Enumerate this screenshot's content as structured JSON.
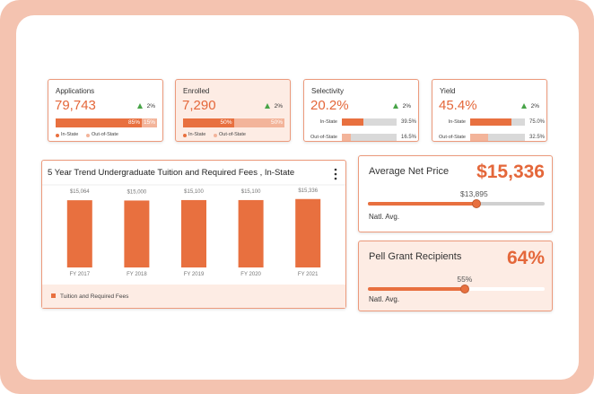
{
  "cards": [
    {
      "title": "Applications",
      "value": "79,743",
      "change": "2%",
      "kind": "stacked",
      "segments": [
        {
          "name": "In-State",
          "value": 85,
          "label": "85%",
          "color": "#e8703f"
        },
        {
          "name": "Out-of-State",
          "value": 15,
          "label": "15%",
          "color": "#f3b49a"
        }
      ]
    },
    {
      "title": "Enrolled",
      "value": "7,290",
      "change": "2%",
      "kind": "stacked",
      "segments": [
        {
          "name": "In-State",
          "value": 50,
          "label": "50%",
          "color": "#e8703f"
        },
        {
          "name": "Out-of-State",
          "value": 50,
          "label": "50%",
          "color": "#f3b49a"
        }
      ]
    },
    {
      "title": "Selectivity",
      "value": "20.2%",
      "change": "2%",
      "kind": "rows",
      "segments": [
        {
          "name": "In-State",
          "value": 39.5,
          "label": "39.5%",
          "color": "#e8703f"
        },
        {
          "name": "Out-of-State",
          "value": 16.5,
          "label": "16.5%",
          "color": "#f3b49a"
        }
      ]
    },
    {
      "title": "Yield",
      "value": "45.4%",
      "change": "2%",
      "kind": "rows",
      "segments": [
        {
          "name": "In-State",
          "value": 75.0,
          "label": "75.0%",
          "color": "#e8703f"
        },
        {
          "name": "Out-of-State",
          "value": 32.5,
          "label": "32.5%",
          "color": "#f3b49a"
        }
      ]
    }
  ],
  "chart_data": {
    "type": "bar",
    "title": "5 Year Trend Undergraduate Tuition and Required Fees , In-State",
    "categories": [
      "FY 2017",
      "FY 2018",
      "FY 2019",
      "FY 2020",
      "FY 2021"
    ],
    "series": [
      {
        "name": "Tuition and Required Fees",
        "color": "#e8703f",
        "values": [
          15064,
          15000,
          15100,
          15100,
          15336
        ],
        "value_labels": [
          "$15,064",
          "$15,000",
          "$15,100",
          "$15,100",
          "$15,336"
        ]
      }
    ],
    "ylim": [
      0,
      17500
    ]
  },
  "net_price": {
    "title": "Average Net Price",
    "value": "$15,336",
    "benchmark": "$13,895",
    "benchmark_label": "Natl. Avg."
  },
  "pell": {
    "title": "Pell Grant Recipients",
    "value": "64%",
    "benchmark": 55,
    "benchmark_text": "55%",
    "benchmark_label": "Natl. Avg.",
    "scale": [
      0,
      100
    ]
  }
}
